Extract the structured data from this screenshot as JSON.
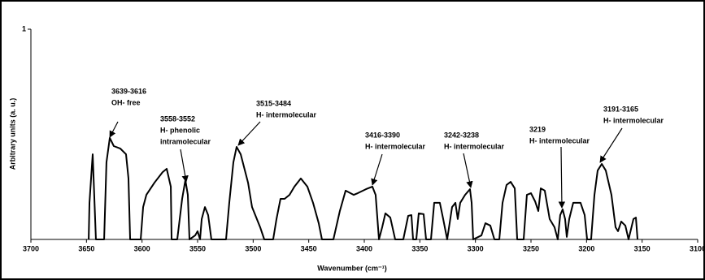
{
  "chart_data": {
    "type": "line",
    "xlabel": "Wavenumber (cm⁻¹)",
    "ylabel": "Arbitrary units (a. u.)",
    "color": "#000000",
    "xlim": [
      3700,
      3100
    ],
    "xticks": [
      3700,
      3650,
      3600,
      3550,
      3500,
      3450,
      3400,
      3350,
      3300,
      3250,
      3200,
      3150,
      3100
    ],
    "ylim": [
      0,
      1
    ],
    "yticks": [
      1
    ],
    "x": [
      3648.0,
      3647.3,
      3644.4,
      3641.5,
      3634.1,
      3632.0,
      3629.0,
      3625.4,
      3619.5,
      3614.4,
      3612.2,
      3610.7,
      3601.2,
      3599.0,
      3596.1,
      3588.8,
      3581.5,
      3577.8,
      3574.1,
      3573.4,
      3568.3,
      3563.9,
      3561.0,
      3558.8,
      3557.3,
      3552.2,
      3550.0,
      3547.8,
      3546.3,
      3543.4,
      3540.5,
      3537.6,
      3524.4,
      3521.5,
      3517.8,
      3514.9,
      3511.2,
      3504.6,
      3501.0,
      3493.7,
      3490.0,
      3482.0,
      3479.0,
      3475.4,
      3471.7,
      3467.3,
      3462.9,
      3457.1,
      3451.2,
      3446.1,
      3441.0,
      3438.1,
      3427.8,
      3422.0,
      3416.8,
      3409.5,
      3405.9,
      3398.5,
      3392.7,
      3389.8,
      3386.8,
      3383.9,
      3381.0,
      3376.6,
      3372.2,
      3364.9,
      3360.5,
      3357.6,
      3356.1,
      3353.2,
      3351.0,
      3346.6,
      3344.4,
      3340.0,
      3337.1,
      3332.0,
      3329.0,
      3325.4,
      3321.0,
      3318.0,
      3315.9,
      3313.7,
      3309.3,
      3304.9,
      3303.4,
      3302.0,
      3294.6,
      3291.0,
      3286.6,
      3282.9,
      3278.5,
      3275.6,
      3272.0,
      3268.3,
      3264.6,
      3262.4,
      3256.6,
      3253.7,
      3250.0,
      3246.3,
      3243.4,
      3241.2,
      3237.6,
      3233.2,
      3228.8,
      3225.9,
      3223.7,
      3221.5,
      3219.3,
      3217.8,
      3215.6,
      3212.0,
      3205.4,
      3201.7,
      3199.5,
      3195.9,
      3192.9,
      3190.0,
      3186.3,
      3182.7,
      3177.6,
      3173.9,
      3171.7,
      3168.8,
      3165.1,
      3162.2,
      3157.8,
      3155.6,
      3154.1
    ],
    "values": [
      0,
      0.174,
      0.405,
      0,
      0,
      0.367,
      0.483,
      0.444,
      0.432,
      0.405,
      0.29,
      0,
      0,
      0.154,
      0.212,
      0.27,
      0.32,
      0.336,
      0.251,
      0,
      0,
      0.193,
      0.282,
      0.212,
      0,
      0.019,
      0.039,
      0,
      0.097,
      0.154,
      0.116,
      0,
      0,
      0.174,
      0.367,
      0.44,
      0.405,
      0.27,
      0.154,
      0.058,
      0,
      0,
      0.097,
      0.193,
      0.193,
      0.212,
      0.251,
      0.29,
      0.251,
      0.174,
      0.077,
      0,
      0,
      0.135,
      0.232,
      0.212,
      0.22,
      0.239,
      0.251,
      0.212,
      0,
      0.058,
      0.124,
      0.104,
      0,
      0,
      0.112,
      0.116,
      0,
      0,
      0.124,
      0.12,
      0,
      0,
      0.174,
      0.174,
      0.097,
      0,
      0.154,
      0.174,
      0.097,
      0.174,
      0.212,
      0.239,
      0.174,
      0,
      0.019,
      0.077,
      0.066,
      0,
      0,
      0.174,
      0.259,
      0.274,
      0.243,
      0,
      0,
      0.212,
      0.22,
      0.181,
      0.135,
      0.243,
      0.232,
      0.097,
      0.058,
      0,
      0.116,
      0.143,
      0.097,
      0.012,
      0.097,
      0.174,
      0.174,
      0.116,
      0,
      0,
      0.212,
      0.328,
      0.359,
      0.328,
      0.212,
      0.058,
      0.039,
      0.085,
      0.066,
      0,
      0.097,
      0.104,
      0
    ],
    "annotations": [
      {
        "lines": [
          "3639-3616",
          "OH- free"
        ]
      },
      {
        "lines": [
          "3558-3552",
          "H- phenolic",
          "intramolecular"
        ]
      },
      {
        "lines": [
          "3515-3484",
          "H- intermolecular"
        ]
      },
      {
        "lines": [
          "3416-3390",
          "H- intermolecular"
        ]
      },
      {
        "lines": [
          "3242-3238",
          "H- intermolecular"
        ]
      },
      {
        "lines": [
          "3219",
          "H- intermolecular"
        ]
      },
      {
        "lines": [
          "3191-3165",
          "H- intermolecular"
        ]
      }
    ]
  }
}
